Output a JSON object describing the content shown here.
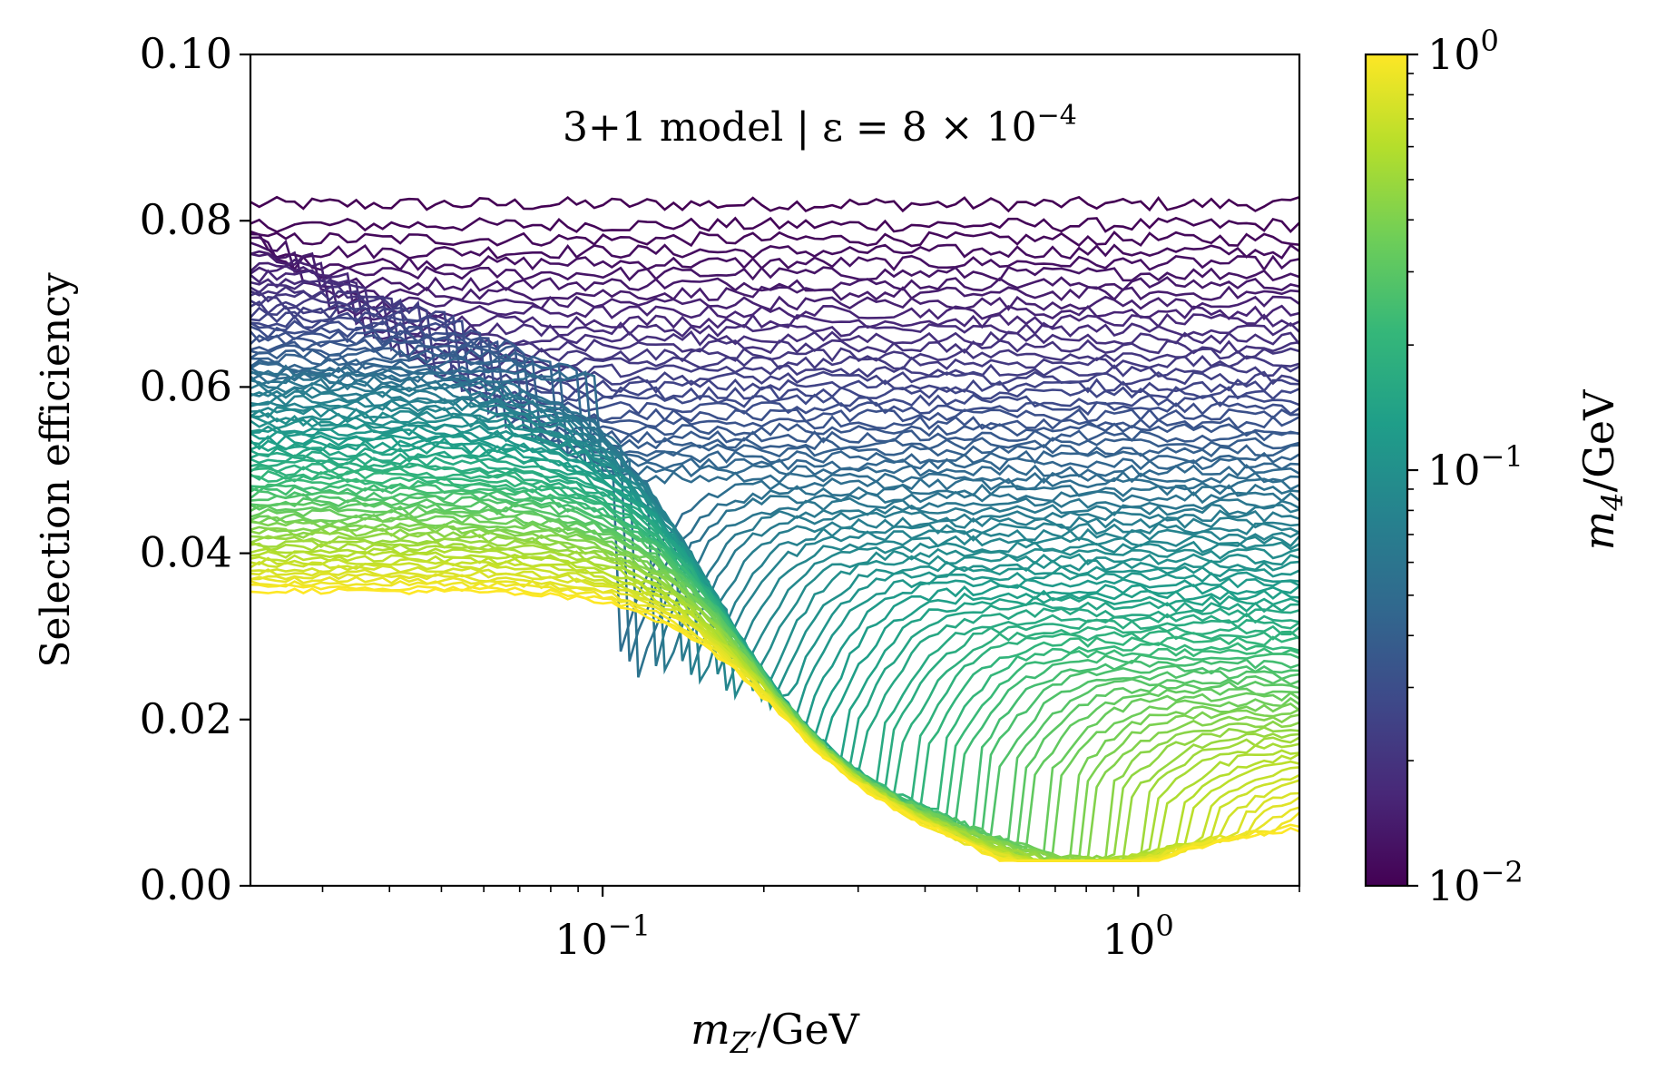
{
  "chart_data": {
    "type": "line",
    "annotation": "3+1 model | ε = 8 × 10",
    "annotation_exp": "−4",
    "xlabel_var": "m",
    "xlabel_sub": "Z′",
    "xlabel_unit": "/GeV",
    "ylabel": "Selection efficiency",
    "xscale": "log",
    "xlim": [
      0.022,
      2.0
    ],
    "ylim": [
      0.0,
      0.1
    ],
    "yticks": [
      {
        "value": 0.0,
        "label": "0.00"
      },
      {
        "value": 0.02,
        "label": "0.02"
      },
      {
        "value": 0.04,
        "label": "0.04"
      },
      {
        "value": 0.06,
        "label": "0.06"
      },
      {
        "value": 0.08,
        "label": "0.08"
      },
      {
        "value": 0.1,
        "label": "0.10"
      }
    ],
    "xticks": [
      {
        "value": 0.1,
        "base": "10",
        "exp": "−1"
      },
      {
        "value": 1.0,
        "base": "10",
        "exp": "0"
      }
    ],
    "colorbar": {
      "label_var": "m",
      "label_sub": "4",
      "label_unit": "/GeV",
      "scale": "log",
      "range": [
        0.01,
        1.0
      ],
      "colormap": "viridis",
      "colormap_stops": [
        "#440154",
        "#482878",
        "#3e4989",
        "#31688e",
        "#26828e",
        "#1f9e89",
        "#35b779",
        "#6ece58",
        "#b5de2b",
        "#fde725"
      ],
      "ticks": [
        {
          "value": 0.01,
          "base": "10",
          "exp": "−2"
        },
        {
          "value": 0.1,
          "base": "10",
          "exp": "−1"
        },
        {
          "value": 1.0,
          "base": "10",
          "exp": "0"
        }
      ]
    },
    "series_model": {
      "description": "Family of curves, one per m4 value, log-spaced from 0.01 to 1 GeV",
      "n_curves": 90,
      "m4_min": 0.01,
      "m4_max": 1.0,
      "x_points": 120,
      "noise": 0.0012,
      "left_plateau_low_m4": 0.081,
      "left_plateau_high_m4": 0.0355,
      "right_plateau_low_m4": 0.082,
      "right_plateau_high_m4": 0.0095,
      "dip_floor": 0.0035,
      "dip_center_mzp": 0.75,
      "transition_threshold_factor": 2.0,
      "left_drop_center_mzp": 0.13,
      "left_drop_floor": 0.012
    }
  }
}
